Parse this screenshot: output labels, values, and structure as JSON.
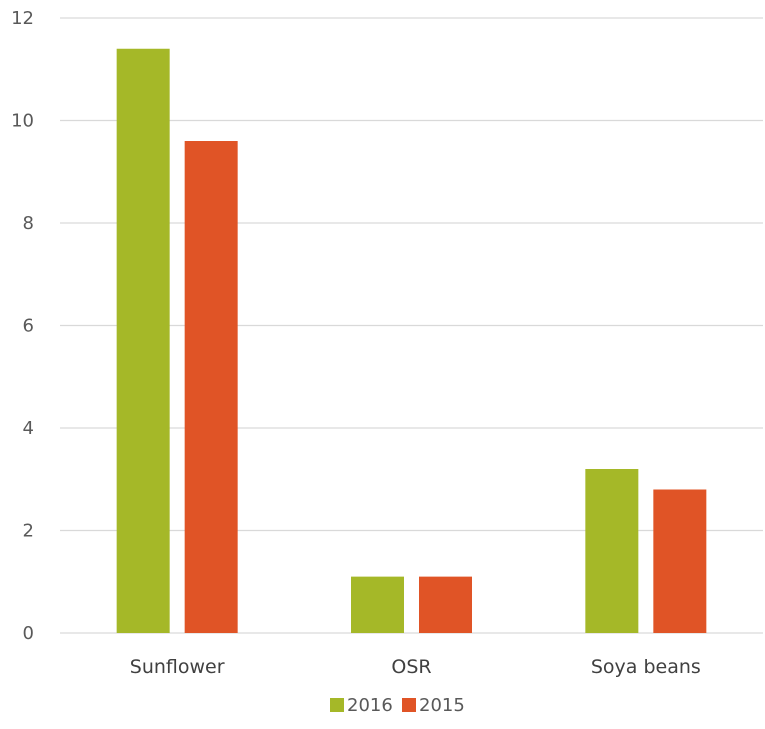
{
  "chart_data": {
    "type": "bar",
    "categories": [
      "Sunflower",
      "OSR",
      "Soya beans"
    ],
    "series": [
      {
        "name": "2016",
        "values": [
          11.4,
          1.1,
          3.2
        ],
        "color": "#a5b828"
      },
      {
        "name": "2015",
        "values": [
          9.6,
          1.1,
          2.8
        ],
        "color": "#e05426"
      }
    ],
    "title": "",
    "xlabel": "",
    "ylabel": "",
    "ylim": [
      0,
      12
    ],
    "yticks": [
      "0",
      "2",
      "4",
      "6",
      "8",
      "10",
      "12"
    ],
    "grid": true,
    "legend": "bottom-center"
  }
}
